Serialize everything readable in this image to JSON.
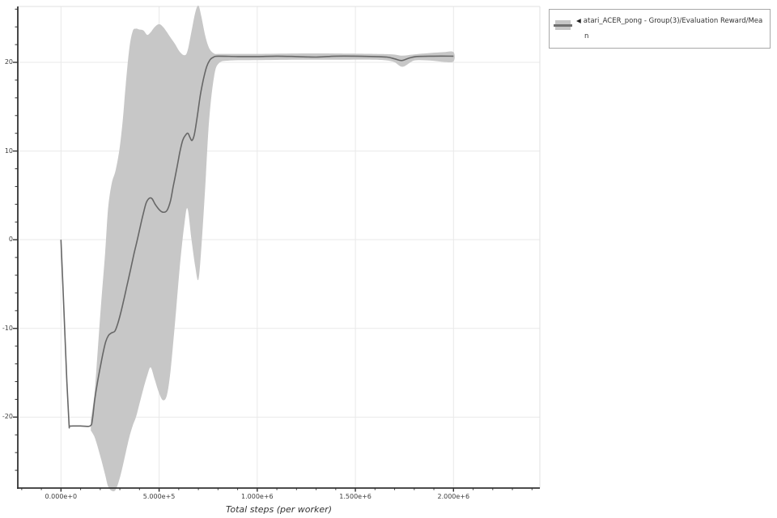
{
  "chart_data": {
    "type": "line",
    "subtype": "mean-line-with-confidence-band",
    "title": "",
    "xlabel": "Total steps (per worker)",
    "ylabel": "",
    "grid": true,
    "legend_position": "top-right-outside",
    "xlim": [
      -220000,
      2440000
    ],
    "ylim": [
      -28,
      26.3
    ],
    "x_ticks": [
      {
        "label": "0.000e+0",
        "value": 0
      },
      {
        "label": "5.000e+5",
        "value": 500000
      },
      {
        "label": "1.000e+6",
        "value": 1000000
      },
      {
        "label": "1.500e+6",
        "value": 1500000
      },
      {
        "label": "2.000e+6",
        "value": 2000000
      }
    ],
    "y_ticks": [
      {
        "label": "-20",
        "value": -20
      },
      {
        "label": "-10",
        "value": -10
      },
      {
        "label": "0",
        "value": 0
      },
      {
        "label": "10",
        "value": 10
      },
      {
        "label": "20",
        "value": 20
      }
    ],
    "x_minor_tick_step": 100000,
    "y_minor_tick_step": 2,
    "colors": {
      "band": "#c7c7c7",
      "line": "#676767",
      "grid": "#e9e9e9",
      "axis": "#333333",
      "light_spine": "#e0e0e0",
      "tick_text": "#3d3d3d"
    },
    "series": [
      {
        "name": "atari_ACER_pong - Group(3)/Evaluation Reward/Mean",
        "legend": {
          "marker": "◀",
          "label_lines": [
            "atari_ACER_pong - Group(3)/Evaluation Reward/Mea",
            "n"
          ]
        },
        "mean": [
          [
            0,
            0
          ],
          [
            15000,
            -8
          ],
          [
            30000,
            -16
          ],
          [
            41000,
            -20.8
          ],
          [
            44000,
            -21
          ],
          [
            60000,
            -21
          ],
          [
            100000,
            -21
          ],
          [
            148000,
            -21
          ],
          [
            160000,
            -20.3
          ],
          [
            172000,
            -18
          ],
          [
            185000,
            -16.2
          ],
          [
            200000,
            -14.4
          ],
          [
            215000,
            -12.7
          ],
          [
            228000,
            -11.5
          ],
          [
            242000,
            -10.8
          ],
          [
            258000,
            -10.5
          ],
          [
            275000,
            -10.3
          ],
          [
            290000,
            -9.4
          ],
          [
            305000,
            -8.2
          ],
          [
            320000,
            -6.8
          ],
          [
            338000,
            -5.0
          ],
          [
            356000,
            -3.2
          ],
          [
            372000,
            -1.6
          ],
          [
            388000,
            -0.1
          ],
          [
            405000,
            1.6
          ],
          [
            420000,
            3.0
          ],
          [
            435000,
            4.2
          ],
          [
            452000,
            4.7
          ],
          [
            465000,
            4.6
          ],
          [
            480000,
            4.0
          ],
          [
            500000,
            3.4
          ],
          [
            520000,
            3.1
          ],
          [
            540000,
            3.3
          ],
          [
            558000,
            4.4
          ],
          [
            572000,
            6.0
          ],
          [
            588000,
            7.8
          ],
          [
            605000,
            9.8
          ],
          [
            620000,
            11.2
          ],
          [
            635000,
            11.8
          ],
          [
            647000,
            12.0
          ],
          [
            658000,
            11.5
          ],
          [
            668000,
            11.2
          ],
          [
            680000,
            11.9
          ],
          [
            695000,
            14.0
          ],
          [
            710000,
            16.3
          ],
          [
            725000,
            18.0
          ],
          [
            742000,
            19.5
          ],
          [
            760000,
            20.3
          ],
          [
            778000,
            20.6
          ],
          [
            800000,
            20.7
          ],
          [
            900000,
            20.65
          ],
          [
            1000000,
            20.65
          ],
          [
            1100000,
            20.7
          ],
          [
            1200000,
            20.65
          ],
          [
            1300000,
            20.6
          ],
          [
            1400000,
            20.7
          ],
          [
            1500000,
            20.7
          ],
          [
            1600000,
            20.65
          ],
          [
            1660000,
            20.6
          ],
          [
            1700000,
            20.4
          ],
          [
            1735000,
            20.2
          ],
          [
            1770000,
            20.45
          ],
          [
            1810000,
            20.65
          ],
          [
            1900000,
            20.7
          ],
          [
            2000000,
            20.7
          ]
        ],
        "band": [
          [
            152000,
            -21.5,
            -20.3
          ],
          [
            170000,
            -22.2,
            -17.5
          ],
          [
            185000,
            -23.2,
            -13.2
          ],
          [
            205000,
            -24.8,
            -7.0
          ],
          [
            225000,
            -26.5,
            -1.5
          ],
          [
            240000,
            -27.8,
            3.5
          ],
          [
            258000,
            -28.3,
            6.3
          ],
          [
            278000,
            -28.2,
            7.8
          ],
          [
            298000,
            -27.0,
            10.2
          ],
          [
            315000,
            -25.5,
            13.5
          ],
          [
            330000,
            -24.0,
            17.5
          ],
          [
            348000,
            -22.3,
            21.5
          ],
          [
            365000,
            -21.0,
            23.5
          ],
          [
            382000,
            -20.0,
            23.8
          ],
          [
            400000,
            -18.5,
            23.7
          ],
          [
            420000,
            -16.8,
            23.6
          ],
          [
            440000,
            -15.3,
            23.1
          ],
          [
            457000,
            -14.4,
            23.4
          ],
          [
            478000,
            -15.8,
            24.0
          ],
          [
            500000,
            -17.3,
            24.3
          ],
          [
            520000,
            -18.1,
            24.0
          ],
          [
            540000,
            -17.5,
            23.4
          ],
          [
            558000,
            -14.8,
            22.8
          ],
          [
            580000,
            -9.6,
            22.1
          ],
          [
            605000,
            -3.2,
            21.2
          ],
          [
            629000,
            1.8,
            20.8
          ],
          [
            645000,
            3.5,
            21.3
          ],
          [
            665000,
            0.0,
            23.5
          ],
          [
            684000,
            -3.0,
            25.6
          ],
          [
            700000,
            -4.5,
            26.4
          ],
          [
            715000,
            -1.0,
            25.2
          ],
          [
            735000,
            6.0,
            23.0
          ],
          [
            755000,
            13.5,
            21.6
          ],
          [
            780000,
            18.4,
            21.0
          ],
          [
            805000,
            19.9,
            20.95
          ],
          [
            860000,
            20.2,
            20.95
          ],
          [
            1000000,
            20.25,
            20.95
          ],
          [
            1200000,
            20.3,
            21.0
          ],
          [
            1400000,
            20.3,
            21.0
          ],
          [
            1600000,
            20.3,
            20.95
          ],
          [
            1690000,
            20.1,
            20.9
          ],
          [
            1740000,
            19.5,
            20.75
          ],
          [
            1800000,
            20.2,
            20.9
          ],
          [
            1880000,
            20.2,
            21.05
          ],
          [
            1950000,
            20.05,
            21.15
          ],
          [
            2000000,
            20.1,
            21.15
          ]
        ]
      }
    ]
  }
}
